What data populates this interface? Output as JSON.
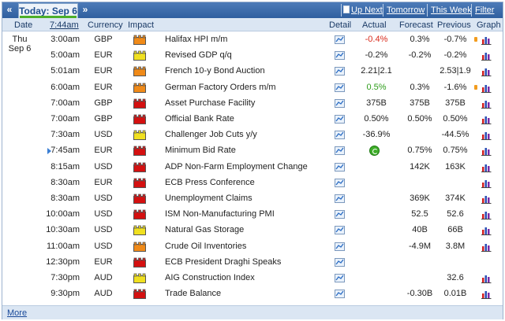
{
  "nav": {
    "prev_label": "«",
    "today_label": "Today: Sep 6",
    "next_label": "»",
    "up_next": "Up Next",
    "tomorrow": "Tomorrow",
    "this_week": "This Week",
    "filter": "Filter"
  },
  "headers": {
    "date": "Date",
    "time": "7:44am",
    "currency": "Currency",
    "impact": "Impact",
    "detail": "Detail",
    "actual": "Actual",
    "forecast": "Forecast",
    "previous": "Previous",
    "graph": "Graph"
  },
  "date": {
    "day": "Thu",
    "date": "Sep 6"
  },
  "colors": {
    "high": "#d41010",
    "medium": "#f08a18",
    "low": "#f0e020"
  },
  "rows": [
    {
      "time": "3:00am",
      "currency": "GBP",
      "impact": "medium",
      "event": "Halifax HPI m/m",
      "actual": "-0.4%",
      "actual_class": "neg",
      "forecast": "0.3%",
      "previous": "-0.7%",
      "revised": true
    },
    {
      "time": "5:00am",
      "currency": "EUR",
      "impact": "low",
      "event": "Revised GDP q/q",
      "actual": "-0.2%",
      "actual_class": "",
      "forecast": "-0.2%",
      "previous": "-0.2%",
      "revised": false
    },
    {
      "time": "5:01am",
      "currency": "EUR",
      "impact": "medium",
      "event": "French 10-y Bond Auction",
      "actual": "2.21|2.1",
      "actual_class": "",
      "forecast": "",
      "previous": "2.53|1.9",
      "revised": false
    },
    {
      "time": "6:00am",
      "currency": "EUR",
      "impact": "medium",
      "event": "German Factory Orders m/m",
      "actual": "0.5%",
      "actual_class": "pos",
      "forecast": "0.3%",
      "previous": "-1.6%",
      "revised": true
    },
    {
      "time": "7:00am",
      "currency": "GBP",
      "impact": "high",
      "event": "Asset Purchase Facility",
      "actual": "375B",
      "actual_class": "",
      "forecast": "375B",
      "previous": "375B",
      "revised": false
    },
    {
      "time": "7:00am",
      "currency": "GBP",
      "impact": "high",
      "event": "Official Bank Rate",
      "actual": "0.50%",
      "actual_class": "",
      "forecast": "0.50%",
      "previous": "0.50%",
      "revised": false
    },
    {
      "time": "7:30am",
      "currency": "USD",
      "impact": "low",
      "event": "Challenger Job Cuts y/y",
      "actual": "-36.9%",
      "actual_class": "",
      "forecast": "",
      "previous": "-44.5%",
      "revised": false
    },
    {
      "time": "7:45am",
      "currency": "EUR",
      "impact": "high",
      "event": "Minimum Bid Rate",
      "actual": "",
      "actual_class": "",
      "forecast": "0.75%",
      "previous": "0.75%",
      "revised": false,
      "current": true
    },
    {
      "time": "8:15am",
      "currency": "USD",
      "impact": "high",
      "event": "ADP Non-Farm Employment Change",
      "actual": "",
      "actual_class": "",
      "forecast": "142K",
      "previous": "163K",
      "revised": false
    },
    {
      "time": "8:30am",
      "currency": "EUR",
      "impact": "high",
      "event": "ECB Press Conference",
      "actual": "",
      "actual_class": "",
      "forecast": "",
      "previous": "",
      "revised": false
    },
    {
      "time": "8:30am",
      "currency": "USD",
      "impact": "high",
      "event": "Unemployment Claims",
      "actual": "",
      "actual_class": "",
      "forecast": "369K",
      "previous": "374K",
      "revised": false
    },
    {
      "time": "10:00am",
      "currency": "USD",
      "impact": "high",
      "event": "ISM Non-Manufacturing PMI",
      "actual": "",
      "actual_class": "",
      "forecast": "52.5",
      "previous": "52.6",
      "revised": false
    },
    {
      "time": "10:30am",
      "currency": "USD",
      "impact": "low",
      "event": "Natural Gas Storage",
      "actual": "",
      "actual_class": "",
      "forecast": "40B",
      "previous": "66B",
      "revised": false
    },
    {
      "time": "11:00am",
      "currency": "USD",
      "impact": "medium",
      "event": "Crude Oil Inventories",
      "actual": "",
      "actual_class": "",
      "forecast": "-4.9M",
      "previous": "3.8M",
      "revised": false
    },
    {
      "time": "12:30pm",
      "currency": "EUR",
      "impact": "high",
      "event": "ECB President Draghi Speaks",
      "actual": "",
      "actual_class": "",
      "forecast": "",
      "previous": "",
      "revised": false,
      "no_graph": true
    },
    {
      "time": "7:30pm",
      "currency": "AUD",
      "impact": "low",
      "event": "AIG Construction Index",
      "actual": "",
      "actual_class": "",
      "forecast": "",
      "previous": "32.6",
      "revised": false
    },
    {
      "time": "9:30pm",
      "currency": "AUD",
      "impact": "high",
      "event": "Trade Balance",
      "actual": "",
      "actual_class": "",
      "forecast": "-0.30B",
      "previous": "0.01B",
      "revised": false
    }
  ],
  "footer": {
    "more": "More"
  }
}
